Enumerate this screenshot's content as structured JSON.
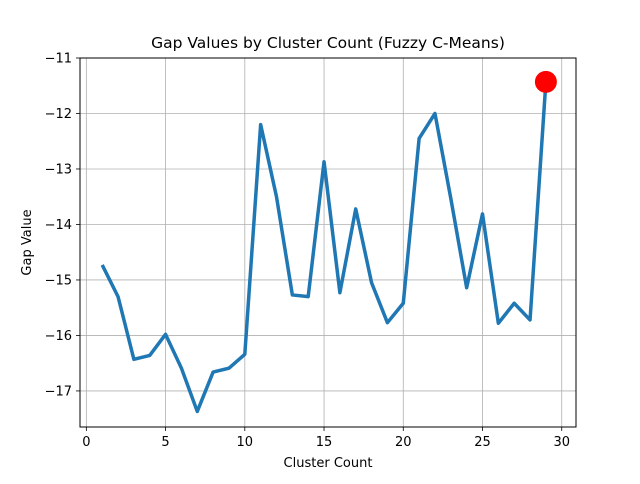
{
  "chart_data": {
    "type": "line",
    "title": "Gap Values by Cluster Count (Fuzzy C-Means)",
    "xlabel": "Cluster Count",
    "ylabel": "Gap Value",
    "xlim": [
      -0.4,
      30.9
    ],
    "ylim": [
      -17.65,
      -11.0
    ],
    "xticks": [
      0,
      5,
      10,
      15,
      20,
      25,
      30
    ],
    "yticks": [
      -17,
      -16,
      -15,
      -14,
      -13,
      -12,
      -11
    ],
    "xtick_labels": [
      "0",
      "5",
      "10",
      "15",
      "20",
      "25",
      "30"
    ],
    "ytick_labels": [
      "−17",
      "−16",
      "−15",
      "−14",
      "−13",
      "−12",
      "−11"
    ],
    "grid": true,
    "series": [
      {
        "color": "#1f77b4",
        "x": [
          1,
          2,
          3,
          4,
          5,
          6,
          7,
          8,
          9,
          10,
          11,
          12,
          13,
          14,
          15,
          16,
          17,
          18,
          19,
          20,
          21,
          22,
          23,
          24,
          25,
          26,
          27,
          28,
          29
        ],
        "y": [
          -14.73,
          -15.3,
          -16.43,
          -16.36,
          -15.98,
          -16.59,
          -17.37,
          -16.66,
          -16.59,
          -16.34,
          -12.2,
          -13.5,
          -15.27,
          -15.3,
          -12.87,
          -15.23,
          -13.72,
          -15.05,
          -15.77,
          -15.42,
          -12.45,
          -12.0,
          -13.53,
          -15.14,
          -13.81,
          -15.78,
          -15.42,
          -15.72,
          -11.43
        ]
      }
    ],
    "highlight": {
      "x": 29,
      "y": -11.43,
      "color": "#ff0000"
    }
  }
}
